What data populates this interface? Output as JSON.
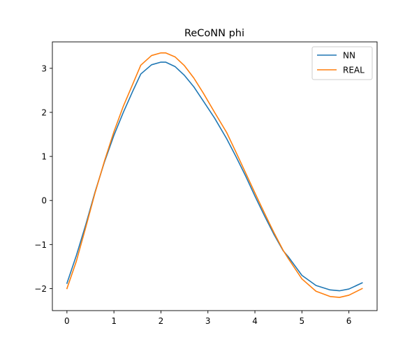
{
  "chart_data": {
    "type": "line",
    "title": "ReCoNN phi",
    "xlabel": "",
    "ylabel": "",
    "xlim": [
      -0.31,
      6.6
    ],
    "ylim": [
      -2.5,
      3.6
    ],
    "xticks": [
      0,
      1,
      2,
      3,
      4,
      5,
      6
    ],
    "yticks": [
      -2,
      -1,
      0,
      1,
      2,
      3
    ],
    "xtick_labels": [
      "0",
      "1",
      "2",
      "3",
      "4",
      "5",
      "6"
    ],
    "ytick_labels": [
      "−2",
      "−1",
      "0",
      "1",
      "2",
      "3"
    ],
    "grid": false,
    "legend": {
      "position": "top-right"
    },
    "series": [
      {
        "name": "NN",
        "color": "#1f77b4",
        "x": [
          0,
          0.2,
          0.4,
          0.6,
          0.8,
          1.0,
          1.2,
          1.4,
          1.571,
          1.8,
          2.0,
          2.1,
          2.3,
          2.5,
          2.7,
          2.9,
          3.142,
          3.4,
          3.6,
          3.8,
          4.0,
          4.2,
          4.4,
          4.6,
          4.712,
          5.0,
          5.3,
          5.6,
          5.8,
          6.0,
          6.283
        ],
        "y": [
          -1.88,
          -1.25,
          -0.55,
          0.2,
          0.88,
          1.48,
          2.0,
          2.48,
          2.87,
          3.08,
          3.14,
          3.14,
          3.04,
          2.84,
          2.58,
          2.26,
          1.87,
          1.4,
          0.99,
          0.56,
          0.1,
          -0.34,
          -0.76,
          -1.14,
          -1.28,
          -1.7,
          -1.93,
          -2.03,
          -2.05,
          -2.01,
          -1.87
        ]
      },
      {
        "name": "REAL",
        "color": "#ff7f0e",
        "x": [
          0,
          0.2,
          0.4,
          0.6,
          0.8,
          1.0,
          1.2,
          1.4,
          1.571,
          1.8,
          2.0,
          2.1,
          2.3,
          2.5,
          2.7,
          2.9,
          3.142,
          3.4,
          3.6,
          3.8,
          4.0,
          4.2,
          4.4,
          4.6,
          4.712,
          5.0,
          5.3,
          5.6,
          5.8,
          6.0,
          6.283
        ],
        "y": [
          -2.0,
          -1.38,
          -0.61,
          0.18,
          0.9,
          1.56,
          2.14,
          2.64,
          3.07,
          3.29,
          3.35,
          3.35,
          3.26,
          3.06,
          2.78,
          2.44,
          2.0,
          1.54,
          1.09,
          0.63,
          0.17,
          -0.28,
          -0.72,
          -1.13,
          -1.32,
          -1.78,
          -2.06,
          -2.18,
          -2.2,
          -2.15,
          -2.0
        ]
      }
    ]
  }
}
